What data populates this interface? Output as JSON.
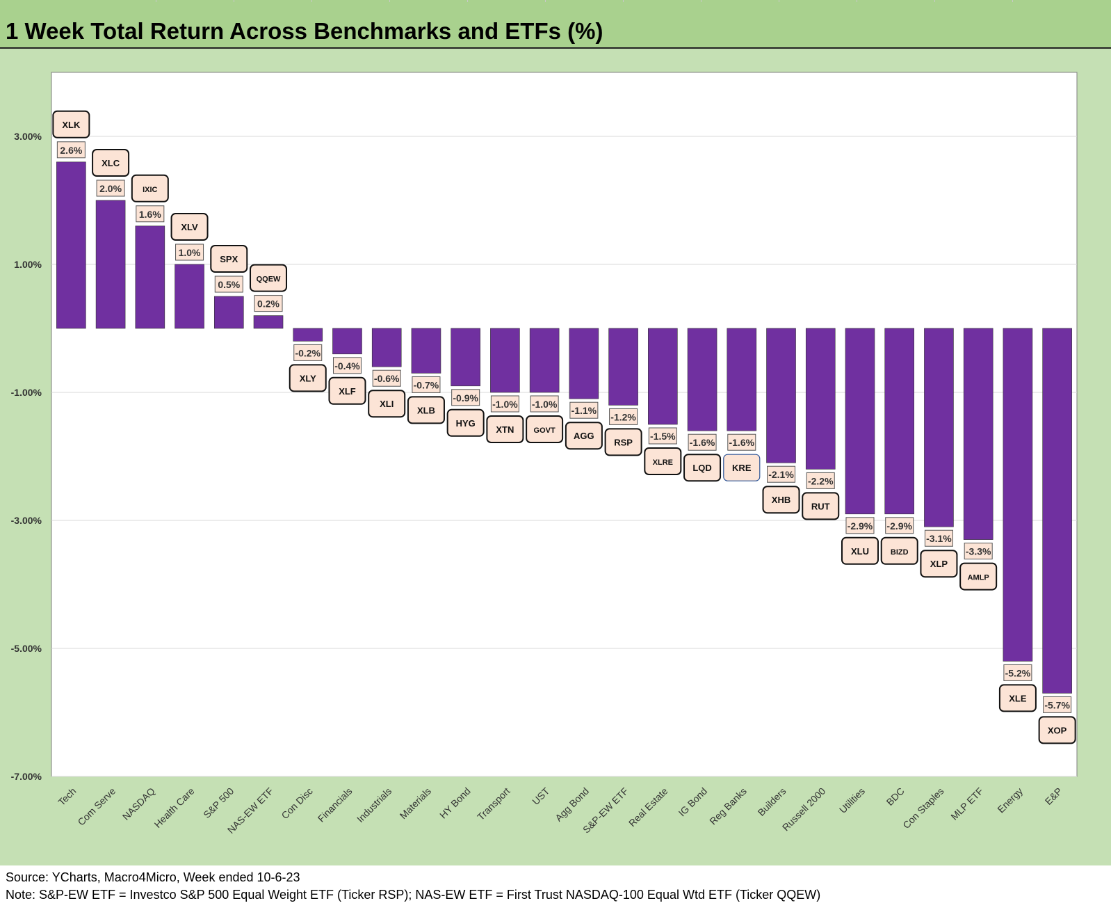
{
  "title": "1 Week Total Return Across Benchmarks and ETFs (%)",
  "footer": {
    "source": "Source: YCharts, Macro4Micro, Week ended 10-6-23",
    "note": "Note: S&P-EW ETF = Investco S&P 500 Equal Weight ETF (Ticker RSP); NAS-EW ETF = First Trust NASDAQ-100 Equal Wtd ETF (Ticker QQEW)"
  },
  "colors": {
    "bar": "#7030a0",
    "label_fill": "#fce4d6",
    "title_bg": "#a9d18e",
    "panel_bg": "#c5e0b4",
    "highlight_border": "#2e5597"
  },
  "chart_data": {
    "type": "bar",
    "title": "1 Week Total Return Across Benchmarks and ETFs (%)",
    "xlabel": "",
    "ylabel": "",
    "ylim": [
      -7,
      4
    ],
    "yticks": [
      {
        "value": 3,
        "label": "3.00%"
      },
      {
        "value": 1,
        "label": "1.00%"
      },
      {
        "value": -1,
        "label": "-1.00%"
      },
      {
        "value": -3,
        "label": "-3.00%"
      },
      {
        "value": -5,
        "label": "-5.00%"
      },
      {
        "value": -7,
        "label": "-7.00%"
      }
    ],
    "grid": true,
    "categories": [
      "Tech",
      "Com Serve",
      "NASDAQ",
      "Health Care",
      "S&P 500",
      "NAS-EW ETF",
      "Con Disc",
      "Financials",
      "Industrials",
      "Materials",
      "HY Bond",
      "Transport",
      "UST",
      "Agg Bond",
      "S&P-EW ETF",
      "Real Estate",
      "IG Bond",
      "Reg Banks",
      "Builders",
      "Russell 2000",
      "Utilities",
      "BDC",
      "Con Staples",
      "MLP ETF",
      "Energy",
      "E&P"
    ],
    "values": [
      2.6,
      2.0,
      1.6,
      1.0,
      0.5,
      0.2,
      -0.2,
      -0.4,
      -0.6,
      -0.7,
      -0.9,
      -1.0,
      -1.0,
      -1.1,
      -1.2,
      -1.5,
      -1.6,
      -1.6,
      -2.1,
      -2.2,
      -2.9,
      -2.9,
      -3.1,
      -3.3,
      -5.2,
      -5.7
    ],
    "value_labels": [
      "2.6%",
      "2.0%",
      "1.6%",
      "1.0%",
      "0.5%",
      "0.2%",
      "-0.2%",
      "-0.4%",
      "-0.6%",
      "-0.7%",
      "-0.9%",
      "-1.0%",
      "-1.0%",
      "-1.1%",
      "-1.2%",
      "-1.5%",
      "-1.6%",
      "-1.6%",
      "-2.1%",
      "-2.2%",
      "-2.9%",
      "-2.9%",
      "-3.1%",
      "-3.3%",
      "-5.2%",
      "-5.7%"
    ],
    "tickers": [
      "XLK",
      "XLC",
      "IXIC",
      "XLV",
      "SPX",
      "QQEW",
      "XLY",
      "XLF",
      "XLI",
      "XLB",
      "HYG",
      "XTN",
      "GOVT",
      "AGG",
      "RSP",
      "XLRE",
      "LQD",
      "KRE",
      "XHB",
      "RUT",
      "XLU",
      "BIZD",
      "XLP",
      "AMLP",
      "XLE",
      "XOP"
    ]
  }
}
